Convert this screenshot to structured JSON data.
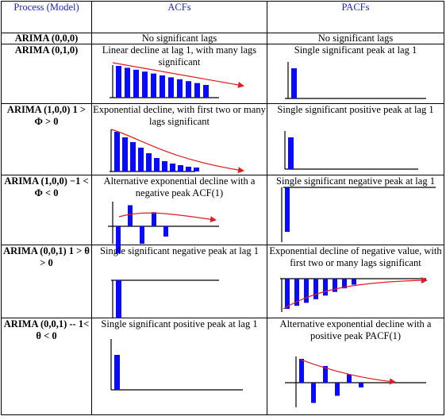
{
  "headers": {
    "process": "Process (Model)",
    "acf": "ACFs",
    "pacf": "PACFs"
  },
  "rows": [
    {
      "model": "ARIMA (0,0,0)",
      "acf": "No significant lags",
      "pacf": "No significant lags"
    },
    {
      "model": "ARIMA (0,1,0)",
      "acf": "Linear decline at lag 1, with many lags significant",
      "pacf": "Single significant peak at lag 1"
    },
    {
      "model": "ARIMA (1,0,0) 1 > Φ > 0",
      "acf": "Exponential decline, with first two or many lags significant",
      "pacf": "Single significant positive peak at lag 1"
    },
    {
      "model": "ARIMA (1,0,0) −1 < Φ < 0",
      "acf": "Alternative exponential decline with a negative peak ACF(1)",
      "pacf": "Single significant negative peak at lag 1"
    },
    {
      "model": "ARIMA (0,0,1) 1 > θ > 0",
      "acf": "Single significant negative peak at lag 1",
      "pacf": "Exponential decline of negative value, with first two or many lags significant"
    },
    {
      "model": "ARIMA (0,0,1) -- 1< θ < 0",
      "acf": "Single significant positive peak at lag 1",
      "pacf": "Alternative exponential decline with a positive peak PACF(1)"
    }
  ],
  "colors": {
    "bar": "#0a0aff",
    "trend": "#e11b22",
    "header_text": "#1f24c9"
  },
  "chart_data": [
    {
      "type": "bar",
      "name": "acf-arima-010",
      "values": [
        1,
        0.94,
        0.88,
        0.82,
        0.76,
        0.7,
        0.64,
        0.58,
        0.52,
        0.46,
        0.4
      ]
    },
    {
      "type": "bar",
      "name": "pacf-arima-010",
      "values": [
        1
      ]
    },
    {
      "type": "bar",
      "name": "acf-arima-100-pos",
      "values": [
        1,
        0.86,
        0.74,
        0.6,
        0.46,
        0.34,
        0.26,
        0.2,
        0.16,
        0.12,
        0.1
      ]
    },
    {
      "type": "bar",
      "name": "pacf-arima-100-pos",
      "values": [
        1
      ]
    },
    {
      "type": "bar",
      "name": "acf-arima-100-neg",
      "values": [
        -1,
        0.78,
        -0.65,
        0.52,
        -0.38
      ]
    },
    {
      "type": "bar",
      "name": "pacf-arima-100-neg",
      "values": [
        -1
      ]
    },
    {
      "type": "bar",
      "name": "acf-arima-001-pos",
      "values": [
        -1
      ]
    },
    {
      "type": "bar",
      "name": "pacf-arima-001-pos",
      "values": [
        -1,
        -0.9,
        -0.8,
        -0.68,
        -0.56,
        -0.44,
        -0.32,
        -0.2
      ]
    },
    {
      "type": "bar",
      "name": "acf-arima-001-neg",
      "values": [
        1
      ]
    },
    {
      "type": "bar",
      "name": "pacf-arima-001-neg",
      "values": [
        1,
        -0.85,
        0.7,
        -0.55,
        0.35,
        -0.2
      ]
    }
  ]
}
